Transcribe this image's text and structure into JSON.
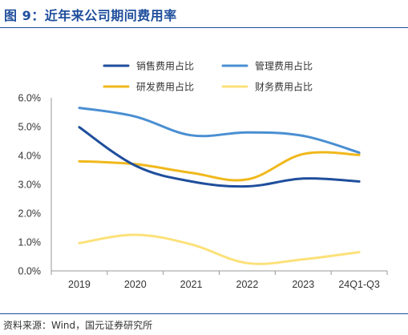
{
  "header": {
    "title": "图 9：近年来公司期间费用率"
  },
  "footer": {
    "source": "资料来源：Wind，国元证券研究所"
  },
  "chart_data": {
    "type": "line",
    "title": "",
    "xlabel": "",
    "ylabel": "",
    "categories": [
      "2019",
      "2020",
      "2021",
      "2022",
      "2023",
      "24Q1-Q3"
    ],
    "y_ticks": [
      "0.0%",
      "1.0%",
      "2.0%",
      "3.0%",
      "4.0%",
      "5.0%",
      "6.0%"
    ],
    "ylim": [
      0,
      6
    ],
    "grid": false,
    "smooth": true,
    "legend_position": "top",
    "series": [
      {
        "name": "销售费用占比",
        "color": "#1f4e9c",
        "values": [
          4.98,
          3.65,
          3.1,
          2.93,
          3.2,
          3.1
        ]
      },
      {
        "name": "管理费用占比",
        "color": "#4a8fd2",
        "values": [
          5.65,
          5.35,
          4.7,
          4.8,
          4.68,
          4.1
        ]
      },
      {
        "name": "研发费用占比",
        "color": "#f0b81b",
        "values": [
          3.8,
          3.7,
          3.4,
          3.17,
          4.05,
          4.02
        ]
      },
      {
        "name": "财务费用占比",
        "color": "#fce17a",
        "values": [
          0.96,
          1.25,
          0.92,
          0.27,
          0.4,
          0.65
        ]
      }
    ]
  }
}
